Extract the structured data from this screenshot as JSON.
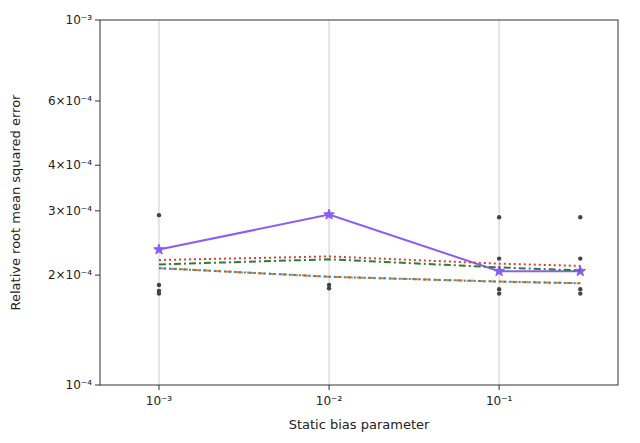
{
  "chart_data": {
    "type": "line",
    "log": true,
    "x_label": "Static bias parameter",
    "y_label": "Relative root mean squared error",
    "xlim": [
      0.00045,
      0.5
    ],
    "ylim": [
      0.0001,
      0.001
    ],
    "xticks": [
      {
        "value": 0.001,
        "label": "10⁻³"
      },
      {
        "value": 0.01,
        "label": "10⁻²"
      },
      {
        "value": 0.1,
        "label": "10⁻¹"
      }
    ],
    "yticks": [
      {
        "value": 0.0001,
        "label": "10⁻⁴"
      },
      {
        "value": 0.0002,
        "label": "2×10⁻⁴"
      },
      {
        "value": 0.0003,
        "label": "3×10⁻⁴"
      },
      {
        "value": 0.0004,
        "label": "4×10⁻⁴"
      },
      {
        "value": 0.0006,
        "label": "6×10⁻⁴"
      },
      {
        "value": 0.001,
        "label": "10⁻³"
      }
    ],
    "vlines": {
      "x": [
        0.001,
        0.01,
        0.1
      ],
      "color": "#cccccc"
    },
    "x": [
      0.001,
      0.01,
      0.1,
      0.3
    ],
    "series": [
      {
        "type": "scatter",
        "color": "#444444",
        "x": [
          0.001,
          0.001,
          0.001,
          0.001,
          0.01,
          0.01,
          0.1,
          0.1,
          0.1,
          0.1,
          0.3,
          0.3,
          0.3,
          0.3
        ],
        "values": [
          0.000292,
          0.000188,
          0.000181,
          0.000178,
          0.000188,
          0.000184,
          0.000288,
          0.000222,
          0.000183,
          0.000178,
          0.000288,
          0.000222,
          0.000183,
          0.000178
        ]
      },
      {
        "type": "line",
        "color": "#8B5CF6",
        "line_style": "solid",
        "marker": "star",
        "values": [
          0.000235,
          0.000293,
          0.000205,
          0.000205
        ]
      },
      {
        "type": "line",
        "color": "#E53935",
        "line_style": "dotted",
        "values": [
          0.00022,
          0.000225,
          0.000215,
          0.000212
        ]
      },
      {
        "type": "line",
        "color": "#2E7D32",
        "line_style": "dashdot",
        "values": [
          0.000214,
          0.000221,
          0.00021,
          0.000206
        ]
      },
      {
        "type": "line",
        "color": "#F57C00",
        "line_style": "dashed",
        "values": [
          0.000209,
          0.000198,
          0.000192,
          0.00019
        ]
      },
      {
        "type": "line",
        "color": "#1E88E5",
        "line_style": "dotted",
        "values": [
          0.000209,
          0.000198,
          0.000192,
          0.00019
        ]
      }
    ]
  }
}
